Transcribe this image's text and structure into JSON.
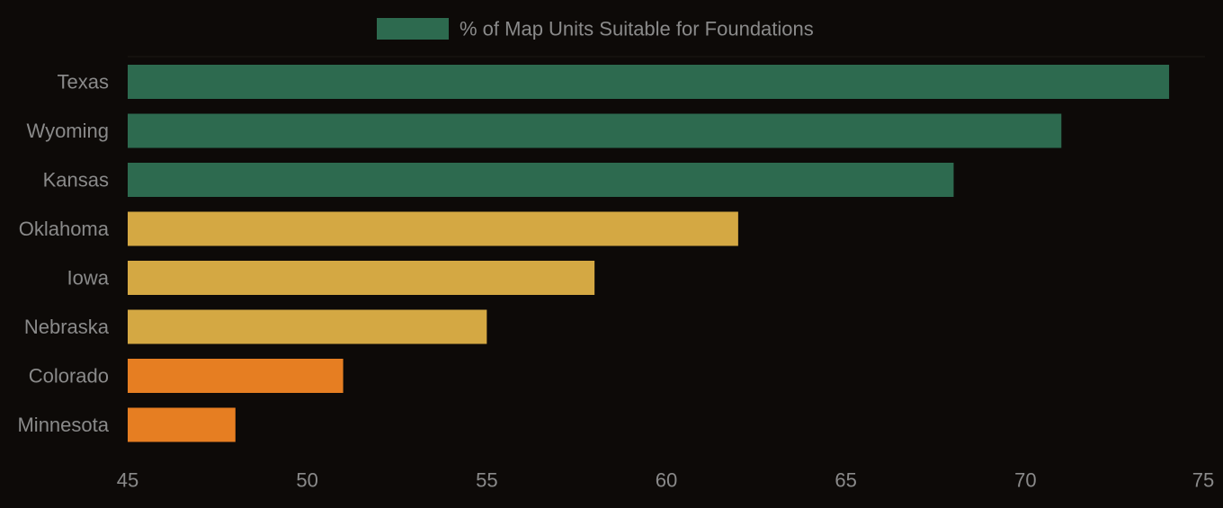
{
  "chart_data": {
    "type": "bar",
    "orientation": "horizontal",
    "legend": {
      "label": "% of Map Units Suitable for Foundations",
      "color": "#2d6a4f",
      "placement": "top-center"
    },
    "categories": [
      "Texas",
      "Wyoming",
      "Kansas",
      "Oklahoma",
      "Iowa",
      "Nebraska",
      "Colorado",
      "Minnesota"
    ],
    "series": [
      {
        "name": "% of Map Units Suitable for Foundations",
        "values": [
          74,
          71,
          68,
          62,
          58,
          55,
          51,
          48
        ],
        "colors": [
          "#2d6a4f",
          "#2d6a4f",
          "#2d6a4f",
          "#d4a843",
          "#d4a843",
          "#d4a843",
          "#e67e22",
          "#e67e22"
        ]
      }
    ],
    "xlim": [
      45,
      75
    ],
    "xticks": [
      45,
      50,
      55,
      60,
      65,
      70,
      75
    ],
    "grid": false,
    "title": "",
    "xlabel": "",
    "ylabel": "",
    "colors": {
      "background": "#0d0a08",
      "text": "#8a8a8a",
      "green": "#2d6a4f",
      "yellow": "#d4a843",
      "orange": "#e67e22"
    }
  }
}
